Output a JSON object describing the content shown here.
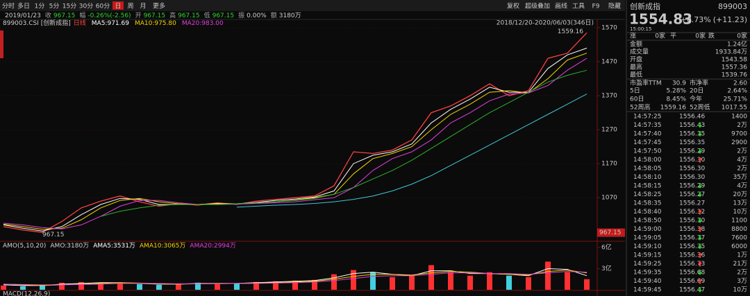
{
  "toolbar": {
    "left": [
      {
        "label": "分时"
      },
      {
        "label": "多日"
      },
      {
        "label": "1分"
      },
      {
        "label": "5分"
      },
      {
        "label": "15分"
      },
      {
        "label": "30分"
      },
      {
        "label": "60分"
      },
      {
        "label": "日",
        "active": true
      },
      {
        "label": "周"
      },
      {
        "label": "月"
      },
      {
        "label": "更多"
      }
    ],
    "right": [
      {
        "label": "复权"
      },
      {
        "label": "超级叠加"
      },
      {
        "label": "画线"
      },
      {
        "label": "工具"
      },
      {
        "label": "F9"
      },
      {
        "label": "隐藏"
      }
    ]
  },
  "info": [
    {
      "value": "2019/01/23",
      "color": "#d0d0d0"
    },
    {
      "label": "收",
      "value": "967.15",
      "color": "#2fd12f"
    },
    {
      "label": "幅",
      "value": "-0.26%(-2.56)",
      "color": "#2fd12f"
    },
    {
      "label": "开",
      "value": "967.15",
      "color": "#2fd12f"
    },
    {
      "label": "高",
      "value": "967.15",
      "color": "#2fd12f"
    },
    {
      "label": "低",
      "value": "967.15",
      "color": "#2fd12f"
    },
    {
      "label": "振",
      "value": "0.00%",
      "color": "#d0d0d0"
    },
    {
      "label": "额",
      "value": "3180万",
      "color": "#d0d0d0"
    }
  ],
  "chart_data": [
    {
      "type": "line",
      "title": "899003.CSI [创新成指]",
      "subtitle": "日线",
      "range_label": "2018/12/20-2020/06/03(346日)",
      "ylim": [
        948,
        1574
      ],
      "yticks": [
        1070,
        1170,
        1270,
        1370,
        1470,
        1570
      ],
      "grid": true,
      "last_price": 967.15,
      "high_marker": 1559.16,
      "low_marker": 967.15,
      "series": [
        {
          "color": "#ff4040",
          "values": [
            985,
            975,
            968,
            1000,
            1040,
            1060,
            1075,
            1058,
            1045,
            1052,
            1048,
            1055,
            1050,
            1060,
            1065,
            1070,
            1075,
            1105,
            1205,
            1200,
            1210,
            1240,
            1320,
            1340,
            1370,
            1405,
            1370,
            1385,
            1480,
            1495,
            1555
          ]
        },
        {
          "name": "MA5:971.69",
          "color": "#ffffff",
          "values": [
            990,
            980,
            972,
            985,
            1020,
            1050,
            1068,
            1065,
            1050,
            1050,
            1050,
            1053,
            1052,
            1056,
            1062,
            1066,
            1072,
            1090,
            1170,
            1195,
            1205,
            1228,
            1290,
            1330,
            1360,
            1395,
            1380,
            1380,
            1450,
            1490,
            1510
          ]
        },
        {
          "name": "MA10:975.80",
          "color": "#f5d400",
          "values": [
            992,
            985,
            977,
            980,
            1005,
            1040,
            1062,
            1068,
            1058,
            1052,
            1050,
            1052,
            1052,
            1054,
            1058,
            1063,
            1070,
            1080,
            1140,
            1185,
            1200,
            1220,
            1270,
            1315,
            1345,
            1380,
            1385,
            1378,
            1420,
            1475,
            1495
          ]
        },
        {
          "name": "MA20:983.00",
          "color": "#e040e0",
          "values": [
            995,
            990,
            982,
            978,
            990,
            1015,
            1045,
            1062,
            1062,
            1055,
            1050,
            1050,
            1051,
            1053,
            1055,
            1058,
            1064,
            1070,
            1100,
            1150,
            1185,
            1205,
            1240,
            1290,
            1320,
            1355,
            1375,
            1378,
            1400,
            1445,
            1480
          ]
        },
        {
          "color": "#30b030",
          "values": [
            null,
            null,
            null,
            null,
            null,
            1015,
            1030,
            1040,
            1048,
            1050,
            1050,
            1050,
            1052,
            1055,
            1058,
            1062,
            1068,
            1080,
            1100,
            1125,
            1150,
            1180,
            1215,
            1250,
            1285,
            1320,
            1350,
            1380,
            1410,
            1430,
            1445
          ]
        },
        {
          "color": "#40c8d8",
          "values": [
            null,
            null,
            null,
            null,
            null,
            null,
            null,
            null,
            null,
            null,
            null,
            null,
            1042,
            1045,
            1048,
            1050,
            1053,
            1058,
            1065,
            1075,
            1090,
            1110,
            1135,
            1165,
            1195,
            1225,
            1255,
            1285,
            1315,
            1345,
            1375
          ]
        }
      ]
    },
    {
      "type": "bar",
      "title": "AMO(5,10,20)",
      "ylim": [
        0,
        6.5
      ],
      "yticks": [
        {
          "value": 3,
          "label": "3亿"
        },
        {
          "value": 6,
          "label": "6亿"
        }
      ],
      "up_color": "#ff3030",
      "down_color": "#40d0e0",
      "series": [
        {
          "name": "AMO:3180万",
          "kind": "bar",
          "values": [
            0.6,
            0.5,
            0.7,
            1.0,
            1.1,
            1.0,
            0.9,
            0.8,
            0.7,
            0.9,
            1.0,
            0.8,
            0.9,
            1.1,
            1.2,
            1.3,
            1.4,
            2.2,
            2.8,
            2.5,
            1.8,
            2.0,
            3.5,
            2.5,
            2.0,
            2.5,
            2.0,
            1.8,
            4.0,
            2.5,
            1.5
          ]
        },
        {
          "name": "AMA5:3531万",
          "kind": "line",
          "color": "#ffffff",
          "values": [
            0.7,
            0.6,
            0.6,
            0.8,
            0.9,
            1.0,
            1.0,
            0.9,
            0.8,
            0.8,
            0.9,
            0.9,
            0.9,
            1.0,
            1.1,
            1.2,
            1.3,
            1.7,
            2.3,
            2.5,
            2.2,
            2.0,
            2.7,
            2.7,
            2.3,
            2.3,
            2.2,
            2.0,
            3.0,
            2.9,
            2.0
          ]
        },
        {
          "name": "AMA10:3065万",
          "kind": "line",
          "color": "#f5d400",
          "values": [
            0.8,
            0.7,
            0.6,
            0.7,
            0.8,
            0.9,
            1.0,
            0.95,
            0.85,
            0.8,
            0.85,
            0.9,
            0.9,
            0.95,
            1.0,
            1.1,
            1.2,
            1.5,
            1.9,
            2.2,
            2.2,
            2.1,
            2.4,
            2.6,
            2.5,
            2.3,
            2.2,
            2.1,
            2.6,
            2.8,
            2.4
          ]
        },
        {
          "name": "AMA20:2994万",
          "kind": "line",
          "color": "#e040e0",
          "values": [
            0.8,
            0.75,
            0.7,
            0.7,
            0.75,
            0.8,
            0.9,
            0.9,
            0.9,
            0.85,
            0.85,
            0.85,
            0.9,
            0.9,
            0.95,
            1.0,
            1.1,
            1.3,
            1.6,
            1.9,
            2.0,
            2.0,
            2.2,
            2.4,
            2.4,
            2.3,
            2.3,
            2.2,
            2.4,
            2.6,
            2.5
          ]
        }
      ]
    }
  ],
  "macd_title": "MACD(12,26,9)",
  "quote": {
    "name": "创新成指",
    "code": "899003",
    "price": "1554.83",
    "change": "+0.73%",
    "change_abs": "(+11.23)",
    "time": "15:00:15",
    "breadth": [
      {
        "label": "涨",
        "value": "0家"
      },
      {
        "label": "平",
        "value": "0家"
      },
      {
        "label": "跌",
        "value": "0家"
      }
    ],
    "stats": [
      [
        {
          "label": "金额",
          "value": "1.24亿",
          "color": "#d0d0d0"
        }
      ],
      [
        {
          "label": "成交量",
          "value": "1933.84万",
          "color": "#d0d0d0"
        }
      ],
      [
        {
          "label": "开盘",
          "value": "1543.58",
          "color": "#2fd12f"
        }
      ],
      [
        {
          "label": "最高",
          "value": "1557.36",
          "color": "#ff4040"
        }
      ],
      [
        {
          "label": "最低",
          "value": "1539.76",
          "color": "#2fd12f"
        }
      ],
      [
        {
          "label": "市盈率TTM",
          "value": "30.9",
          "color": "#d0d0d0"
        },
        {
          "label": "市净率",
          "value": "2.60",
          "color": "#d0d0d0"
        }
      ],
      [
        {
          "label": "5日",
          "value": "5.28%",
          "color": "#ff4040"
        },
        {
          "label": "20日",
          "value": "2.64%",
          "color": "#ff4040"
        }
      ],
      [
        {
          "label": "60日",
          "value": "8.45%",
          "color": "#ff4040"
        },
        {
          "label": "今年",
          "value": "25.71%",
          "color": "#ff4040"
        }
      ],
      [
        {
          "label": "52周高",
          "value": "1559.16",
          "color": "#d0d0d0"
        },
        {
          "label": "52周低",
          "value": "1017.55",
          "color": "#d0d0d0"
        }
      ]
    ]
  },
  "ticks": [
    {
      "time": "14:57:25",
      "price": "1556.46",
      "volume": "1400"
    },
    {
      "time": "14:57:35",
      "price": "1556.43",
      "volume": "2万",
      "dir": "down"
    },
    {
      "time": "14:57:40",
      "price": "1556.35",
      "volume": "9700",
      "dir": "down"
    },
    {
      "time": "14:57:45",
      "price": "1556.35",
      "volume": "2900"
    },
    {
      "time": "14:57:50",
      "price": "1556.29",
      "volume": "2万",
      "dir": "down"
    },
    {
      "time": "14:58:00",
      "price": "1556.30",
      "volume": "4万",
      "dir": "up"
    },
    {
      "time": "14:58:05",
      "price": "1556.30",
      "volume": "2万"
    },
    {
      "time": "14:58:10",
      "price": "1556.30",
      "volume": "35万"
    },
    {
      "time": "14:58:15",
      "price": "1556.29",
      "volume": "4万",
      "dir": "down"
    },
    {
      "time": "14:58:25",
      "price": "1556.27",
      "volume": "20万",
      "dir": "down"
    },
    {
      "time": "14:58:35",
      "price": "1556.27",
      "volume": "13万"
    },
    {
      "time": "14:58:40",
      "price": "1556.32",
      "volume": "10万",
      "dir": "up"
    },
    {
      "time": "14:58:50",
      "price": "1556.30",
      "volume": "1100",
      "dir": "down"
    },
    {
      "time": "14:59:00",
      "price": "1556.38",
      "volume": "8800",
      "dir": "up"
    },
    {
      "time": "14:59:05",
      "price": "1556.37",
      "volume": "7600",
      "dir": "down"
    },
    {
      "time": "14:59:10",
      "price": "1556.35",
      "volume": "6000",
      "dir": "down"
    },
    {
      "time": "14:59:15",
      "price": "1556.36",
      "volume": "1万",
      "dir": "up"
    },
    {
      "time": "14:59:25",
      "price": "1556.73",
      "volume": "21万",
      "dir": "up"
    },
    {
      "time": "14:59:35",
      "price": "1556.68",
      "volume": "2万",
      "dir": "down"
    },
    {
      "time": "14:59:40",
      "price": "1556.69",
      "volume": "3万",
      "dir": "up"
    },
    {
      "time": "14:59:45",
      "price": "1556.47",
      "volume": "10万",
      "dir": "down"
    }
  ]
}
